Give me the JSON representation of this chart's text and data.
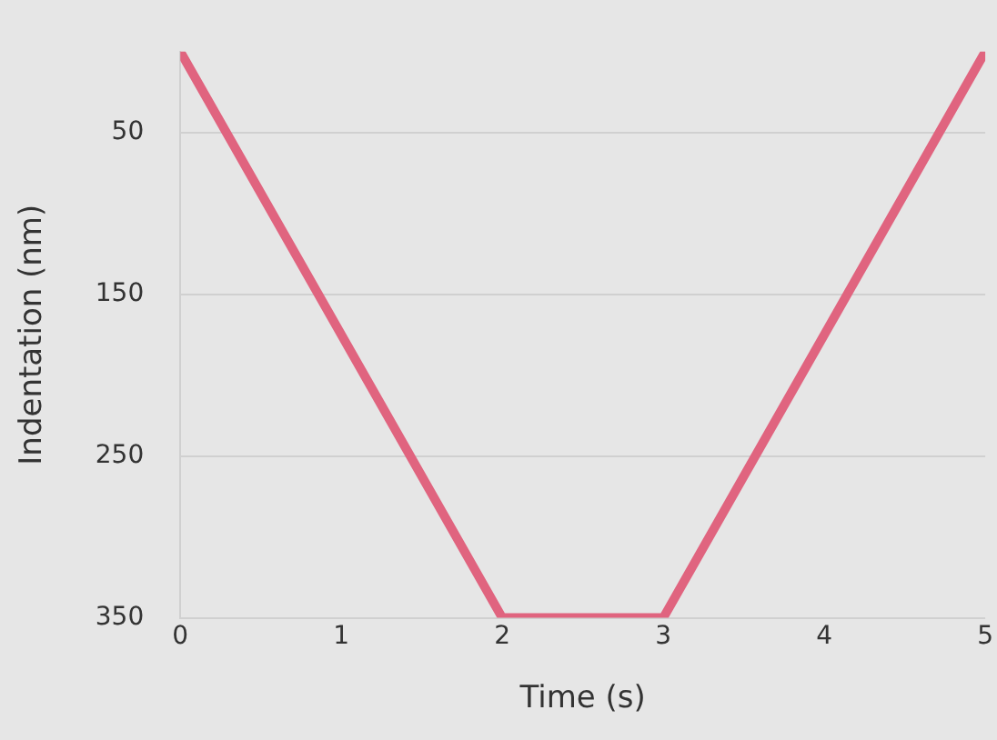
{
  "chart_data": {
    "type": "line",
    "xlabel": "Time (s)",
    "ylabel": "Indentation (nm)",
    "x": [
      0,
      2,
      3,
      5
    ],
    "series": [
      {
        "color": "#e0647f",
        "values": [
          0,
          350,
          350,
          0
        ]
      }
    ],
    "xlim": [
      0,
      5
    ],
    "xticks": [
      0,
      1,
      2,
      3,
      4,
      5
    ],
    "ylim": [
      350,
      0
    ],
    "yticks": [
      50,
      150,
      250,
      350
    ],
    "grid": "y",
    "legend": false,
    "marker": "none",
    "line_style": "solid"
  }
}
